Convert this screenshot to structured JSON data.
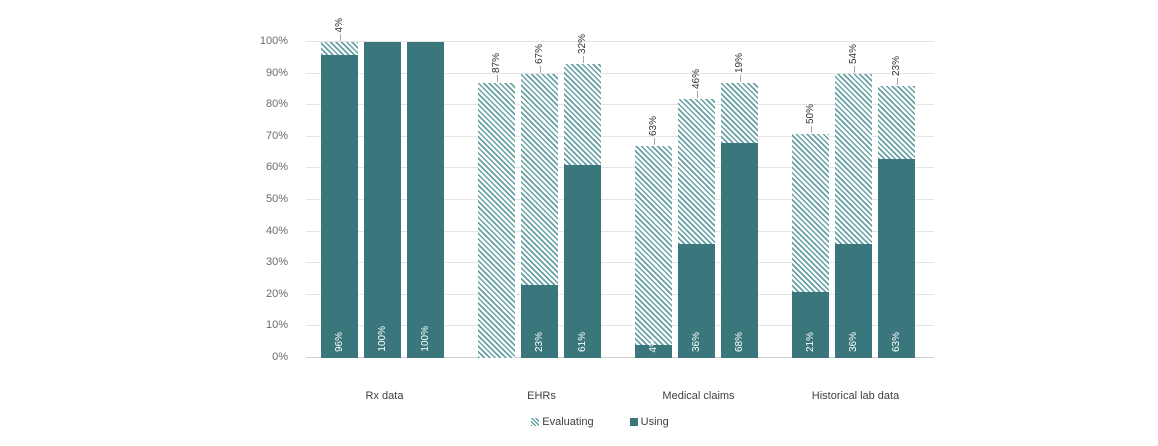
{
  "chart_data": {
    "type": "bar",
    "stacked": true,
    "title": "",
    "xlabel": "",
    "ylabel": "",
    "ylim": [
      0,
      100
    ],
    "grid": true,
    "y_ticks": [
      "0%",
      "10%",
      "20%",
      "30%",
      "40%",
      "50%",
      "60%",
      "70%",
      "80%",
      "90%",
      "100%"
    ],
    "legend": {
      "position": "bottom",
      "items": [
        {
          "label": "Evaluating",
          "style": "hatched"
        },
        {
          "label": "Using",
          "style": "solid"
        }
      ]
    },
    "colors": {
      "using_fill": "#3a777c",
      "evaluating_stripe": "#66a1a6",
      "evaluating_background": "#ffffff",
      "gridline": "#e4e4e4",
      "axis_line": "#cfcfcf",
      "tick_text": "#6b6b6b",
      "category_text": "#3f3f3f",
      "outside_label_text": "#333333",
      "inside_label_text": "#ffffff",
      "leader_line": "#a8a8a8"
    },
    "groups": [
      {
        "category": "Rx data",
        "bars": [
          {
            "using": 96,
            "evaluating": 4,
            "using_label": "96%",
            "evaluating_label": "4%"
          },
          {
            "using": 100,
            "evaluating": 0,
            "using_label": "100%",
            "evaluating_label": ""
          },
          {
            "using": 100,
            "evaluating": 0,
            "using_label": "100%",
            "evaluating_label": ""
          }
        ]
      },
      {
        "category": "EHRs",
        "bars": [
          {
            "using": 0,
            "evaluating": 87,
            "using_label": "",
            "evaluating_label": "87%"
          },
          {
            "using": 23,
            "evaluating": 67,
            "using_label": "23%",
            "evaluating_label": "67%"
          },
          {
            "using": 61,
            "evaluating": 32,
            "using_label": "61%",
            "evaluating_label": "32%"
          }
        ]
      },
      {
        "category": "Medical claims",
        "bars": [
          {
            "using": 4,
            "evaluating": 63,
            "using_label": "4%",
            "evaluating_label": "63%"
          },
          {
            "using": 36,
            "evaluating": 46,
            "using_label": "36%",
            "evaluating_label": "46%"
          },
          {
            "using": 68,
            "evaluating": 19,
            "using_label": "68%",
            "evaluating_label": "19%"
          }
        ]
      },
      {
        "category": "Historical lab data",
        "bars": [
          {
            "using": 21,
            "evaluating": 50,
            "using_label": "21%",
            "evaluating_label": "50%"
          },
          {
            "using": 36,
            "evaluating": 54,
            "using_label": "36%",
            "evaluating_label": "54%"
          },
          {
            "using": 63,
            "evaluating": 23,
            "using_label": "63%",
            "evaluating_label": "23%"
          }
        ]
      }
    ]
  }
}
